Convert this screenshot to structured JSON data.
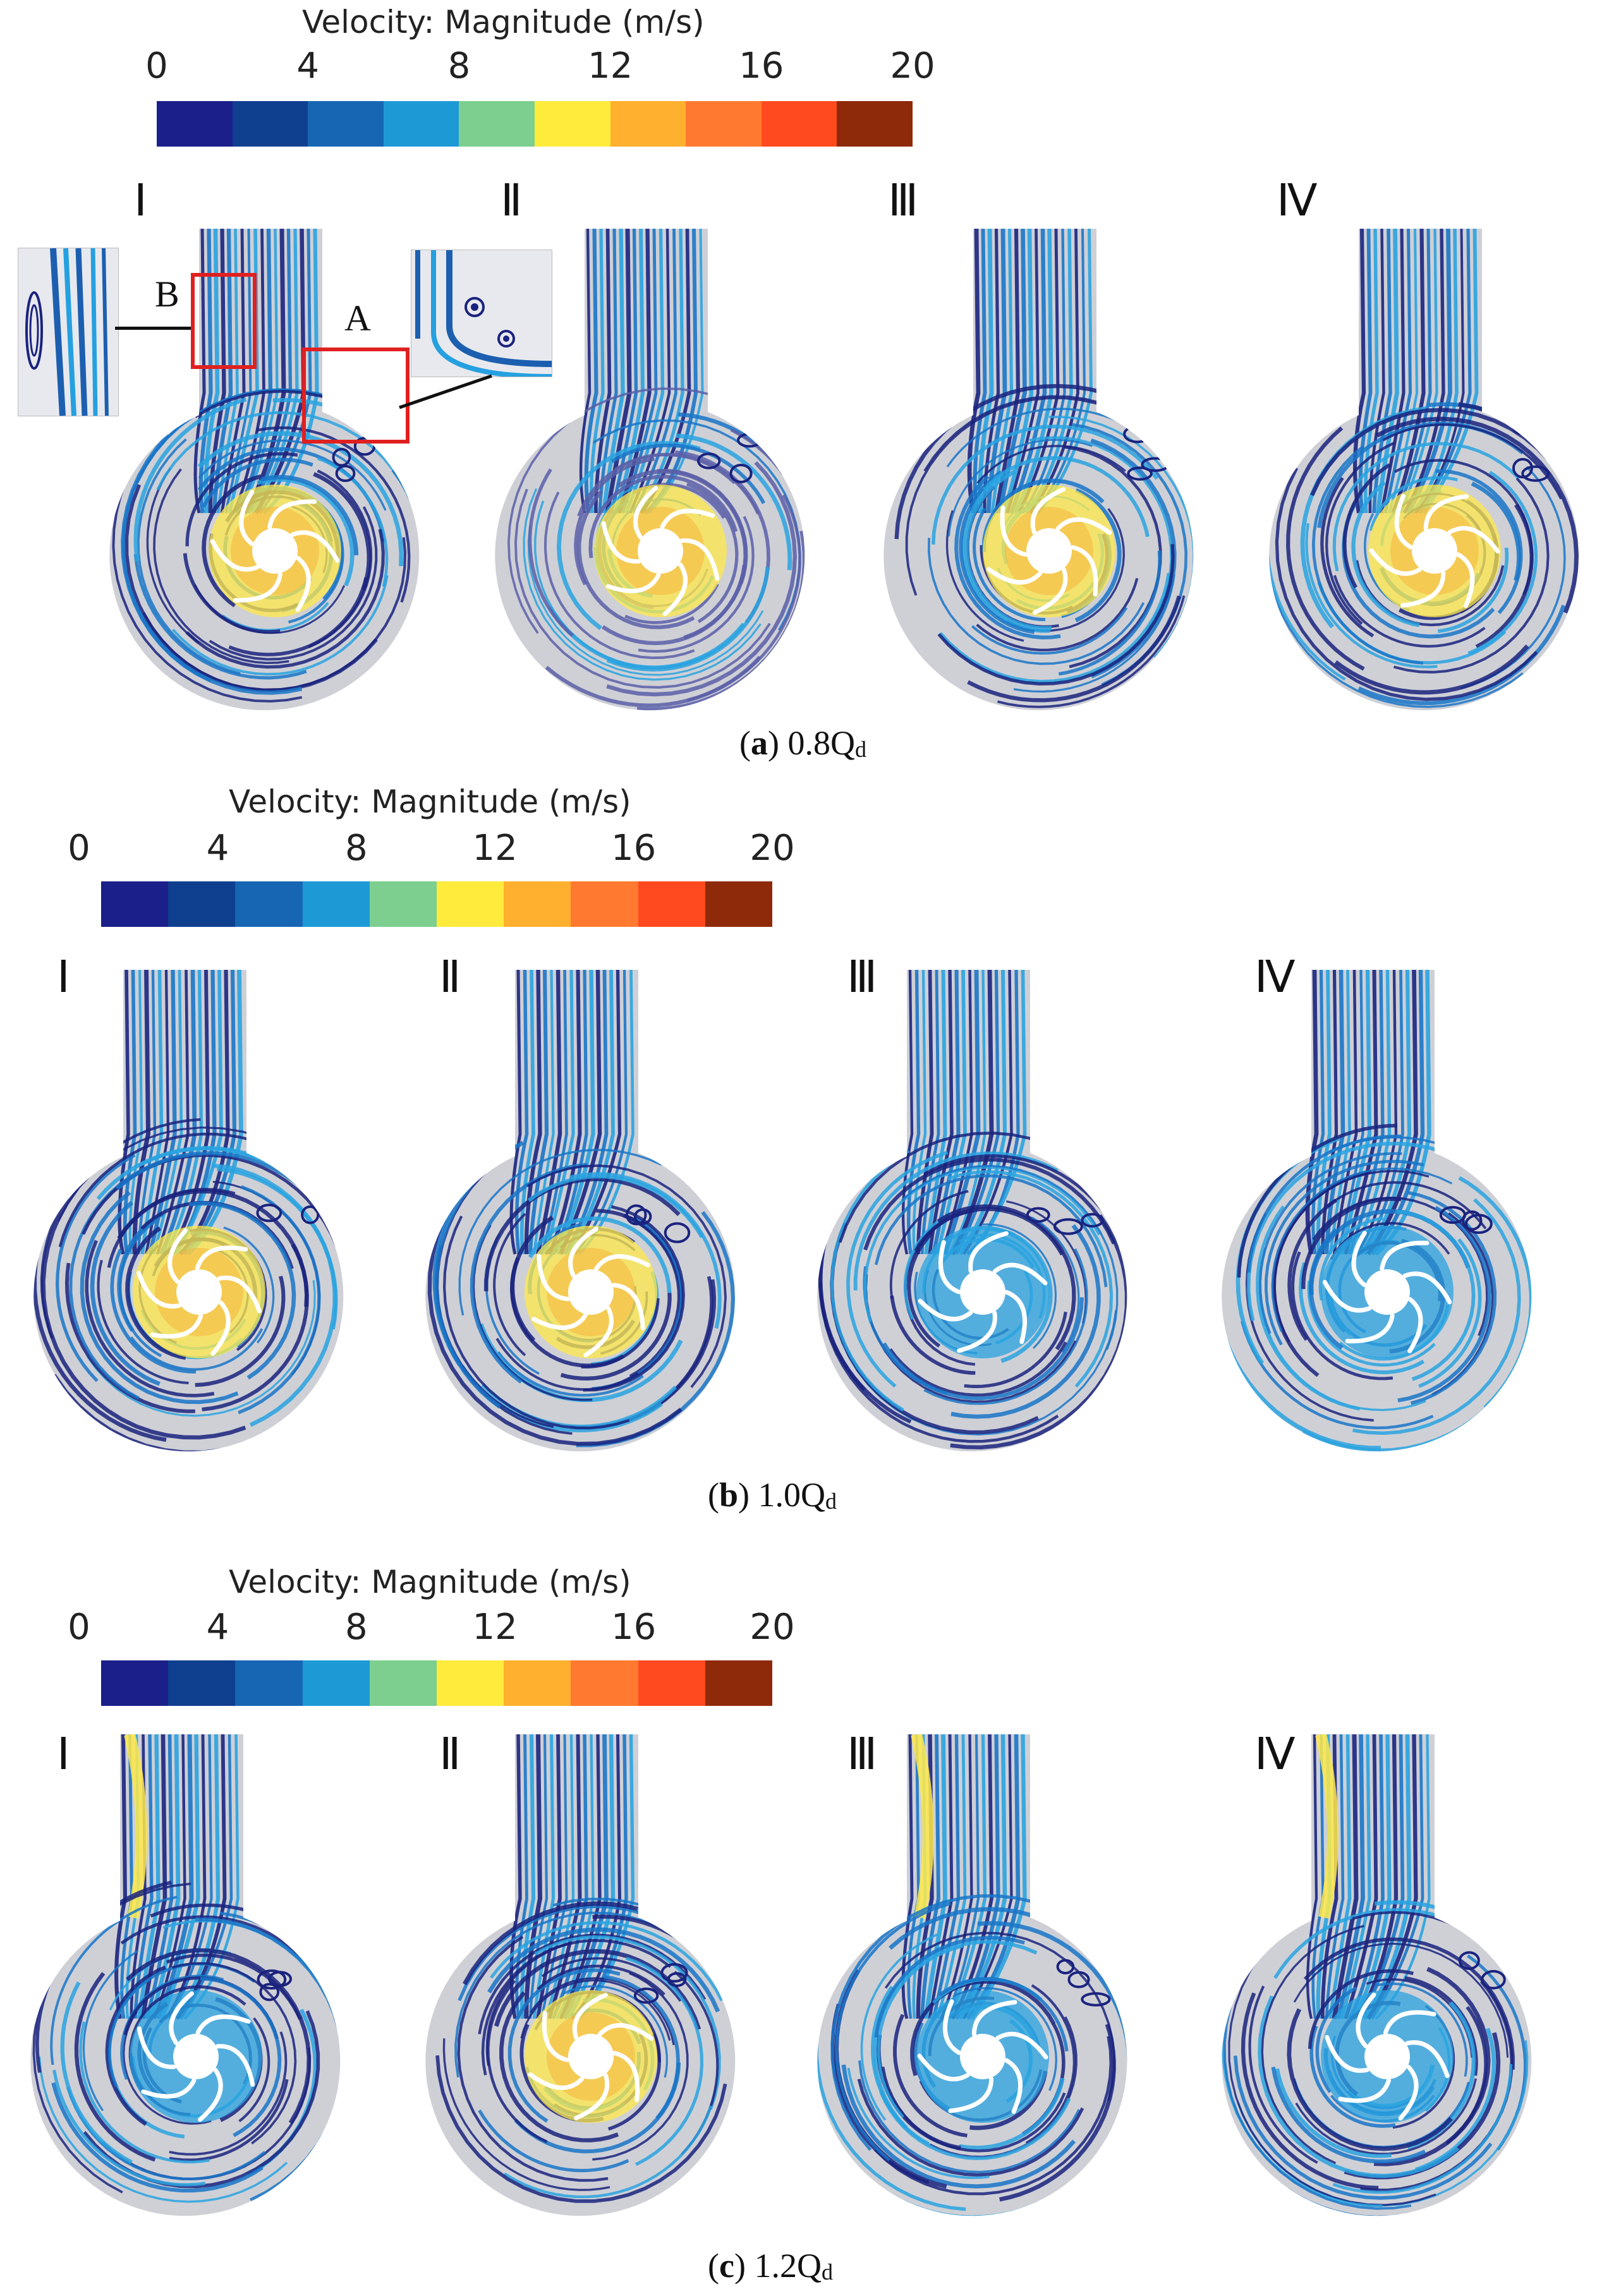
{
  "colorbar": {
    "title": "Velocity: Magnitude (m/s)",
    "ticks": [
      "0",
      "4",
      "8",
      "12",
      "16",
      "20"
    ],
    "colors": [
      "#1b1f8a",
      "#0f3f8f",
      "#1766b3",
      "#1d9ad6",
      "#7ccf8e",
      "#ffeb3c",
      "#ffb02e",
      "#ff7a30",
      "#ff4a20",
      "#8e2a0a"
    ]
  },
  "roman_labels": [
    "Ⅰ",
    "Ⅱ",
    "Ⅲ",
    "Ⅳ"
  ],
  "panels": [
    {
      "letter": "a",
      "condition": "0.8Q",
      "subscript": "d"
    },
    {
      "letter": "b",
      "condition": "1.0Q",
      "subscript": "d"
    },
    {
      "letter": "c",
      "condition": "1.2Q",
      "subscript": "d"
    }
  ],
  "zoom_labels": {
    "a": "A",
    "b": "B"
  },
  "palette": {
    "casing": "#cfd0d6",
    "dark_stream": "#1a237e",
    "mid_stream": "#1976c8",
    "light_stream": "#29a3e0",
    "highlight": "#ffe94a",
    "hot": "#f7b13a"
  }
}
